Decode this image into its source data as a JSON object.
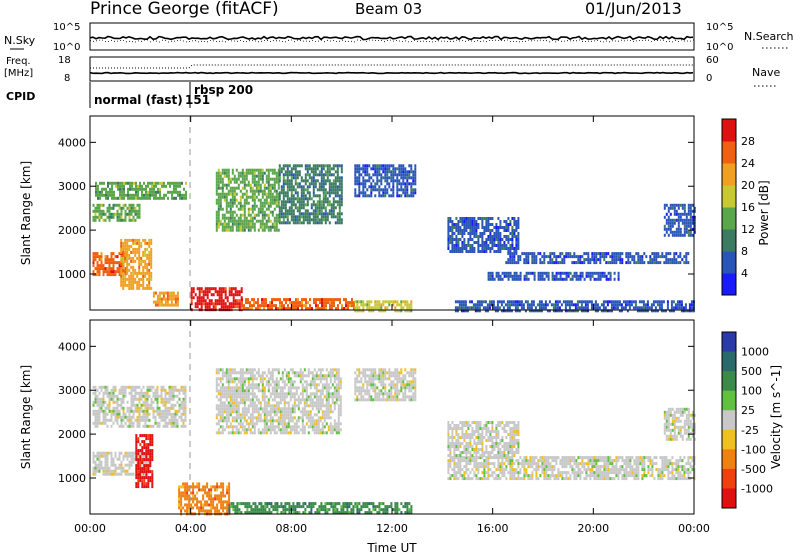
{
  "header": {
    "station": "Prince George (fitACF)",
    "beam": "Beam 03",
    "date": "01/Jun/2013"
  },
  "status_panels": {
    "nsky_label": "N.Sky",
    "nsky_ticks": [
      "10^5",
      "10^0"
    ],
    "nsearch_label": "N.Search",
    "nsearch_ticks": [
      "10^5",
      "10^0"
    ],
    "freq_label": "Freq.",
    "freq_unit": "[MHz]",
    "freq_ticks": [
      "18",
      "8"
    ],
    "nave_label": "Nave",
    "nave_ticks": [
      "60",
      "0"
    ],
    "cpid_label": "CPID",
    "cpid_modes": [
      {
        "name": "normal (fast)",
        "id": "151",
        "start_ut": 0
      },
      {
        "name": "rbsp",
        "id": "200",
        "start_ut": 4.0
      }
    ]
  },
  "chart_data": [
    {
      "type": "heatmap",
      "panel": "power",
      "xlabel": "",
      "ylabel": "Slant Range [km]",
      "x_ticks": [
        "00:00",
        "04:00",
        "08:00",
        "12:00",
        "16:00",
        "20:00",
        "00:00"
      ],
      "xlim": [
        0,
        24
      ],
      "ylim": [
        180,
        4600
      ],
      "y_ticks": [
        1000,
        2000,
        3000,
        4000
      ],
      "colorbar_label": "Power [dB]",
      "colorbar_ticks": [
        4,
        8,
        12,
        16,
        20,
        24,
        28
      ],
      "colorbar_range": [
        0,
        32
      ],
      "colorbar_colors": [
        "#1a1aff",
        "#2a55b8",
        "#3c7a62",
        "#5aa64a",
        "#c8c832",
        "#f0a020",
        "#f06010",
        "#e01010"
      ],
      "echo_regions": [
        {
          "t0": 0.1,
          "t1": 1.4,
          "r0": 1000,
          "r1": 1500,
          "value": 24
        },
        {
          "t0": 1.2,
          "t1": 2.4,
          "r0": 700,
          "r1": 1800,
          "value": 22
        },
        {
          "t0": 0.1,
          "t1": 2.0,
          "r0": 2200,
          "r1": 2600,
          "value": 14
        },
        {
          "t0": 0.2,
          "t1": 3.8,
          "r0": 2700,
          "r1": 3100,
          "value": 12
        },
        {
          "t0": 2.5,
          "t1": 3.5,
          "r0": 300,
          "r1": 600,
          "value": 20
        },
        {
          "t0": 4.0,
          "t1": 6.0,
          "r0": 180,
          "r1": 700,
          "value": 28
        },
        {
          "t0": 6.0,
          "t1": 10.5,
          "r0": 180,
          "r1": 450,
          "value": 24
        },
        {
          "t0": 10.5,
          "t1": 12.8,
          "r0": 180,
          "r1": 400,
          "value": 16
        },
        {
          "t0": 5.0,
          "t1": 7.5,
          "r0": 2000,
          "r1": 3400,
          "value": 14
        },
        {
          "t0": 7.5,
          "t1": 10.0,
          "r0": 2200,
          "r1": 3500,
          "value": 10
        },
        {
          "t0": 10.5,
          "t1": 12.9,
          "r0": 2800,
          "r1": 3500,
          "value": 6
        },
        {
          "t0": 14.2,
          "t1": 17.0,
          "r0": 1500,
          "r1": 2300,
          "value": 5
        },
        {
          "t0": 16.5,
          "t1": 23.8,
          "r0": 1250,
          "r1": 1500,
          "value": 5
        },
        {
          "t0": 15.8,
          "t1": 21.0,
          "r0": 900,
          "r1": 1050,
          "value": 5
        },
        {
          "t0": 22.8,
          "t1": 24.0,
          "r0": 1900,
          "r1": 2600,
          "value": 6
        },
        {
          "t0": 14.5,
          "t1": 24.0,
          "r0": 180,
          "r1": 400,
          "value": 5
        }
      ]
    },
    {
      "type": "heatmap",
      "panel": "velocity",
      "xlabel": "Time UT",
      "ylabel": "Slant Range [km]",
      "x_ticks": [
        "00:00",
        "04:00",
        "08:00",
        "12:00",
        "16:00",
        "20:00",
        "00:00"
      ],
      "xlim": [
        0,
        24
      ],
      "ylim": [
        180,
        4600
      ],
      "y_ticks": [
        1000,
        2000,
        3000,
        4000
      ],
      "colorbar_label": "Velocity [m s^-1]",
      "colorbar_ticks": [
        "1000",
        "500",
        "100",
        "25",
        "-25",
        "-100",
        "-500",
        "-1000"
      ],
      "colorbar_colors": [
        "#2a3aa8",
        "#2a6a6a",
        "#3a8a4a",
        "#60c040",
        "#c8c8c8",
        "#f0c020",
        "#f08010",
        "#f04010",
        "#e01010"
      ],
      "echo_regions": [
        {
          "t0": 0.1,
          "t1": 2.4,
          "r0": 1100,
          "r1": 1600,
          "value": "25"
        },
        {
          "t0": 1.8,
          "t1": 2.5,
          "r0": 800,
          "r1": 2000,
          "value": "-1000"
        },
        {
          "t0": 0.1,
          "t1": 3.8,
          "r0": 2200,
          "r1": 3100,
          "value": "-25"
        },
        {
          "t0": 3.5,
          "t1": 5.5,
          "r0": 180,
          "r1": 900,
          "value": "-500"
        },
        {
          "t0": 5.5,
          "t1": 12.8,
          "r0": 180,
          "r1": 450,
          "value": "100"
        },
        {
          "t0": 5.0,
          "t1": 10.0,
          "r0": 2000,
          "r1": 3500,
          "value": "-25"
        },
        {
          "t0": 10.5,
          "t1": 12.9,
          "r0": 2800,
          "r1": 3500,
          "value": "-25"
        },
        {
          "t0": 14.2,
          "t1": 24.0,
          "r0": 1000,
          "r1": 1500,
          "value": "25"
        },
        {
          "t0": 14.2,
          "t1": 17.0,
          "r0": 1500,
          "r1": 2300,
          "value": "25"
        },
        {
          "t0": 22.8,
          "t1": 24.0,
          "r0": 1900,
          "r1": 2600,
          "value": "25"
        }
      ]
    }
  ]
}
